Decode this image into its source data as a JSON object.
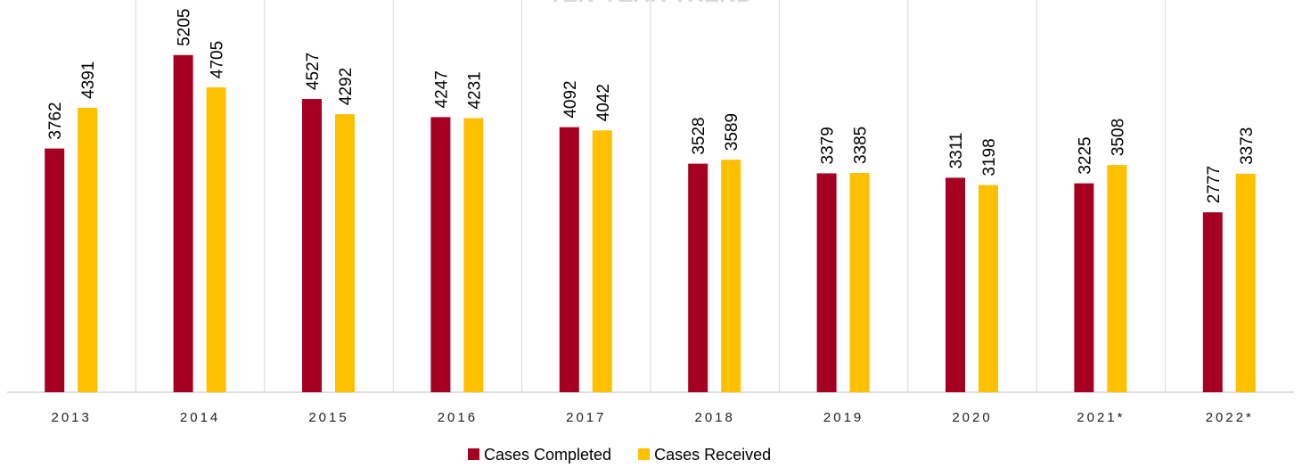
{
  "chart_data": {
    "type": "bar",
    "title": "TEN-YEAR TREND",
    "categories": [
      "2013",
      "2014",
      "2015",
      "2016",
      "2017",
      "2018",
      "2019",
      "2020",
      "2021*",
      "2022*"
    ],
    "series": [
      {
        "name": "Cases Completed",
        "color": "#a50021",
        "values": [
          3762,
          5205,
          4527,
          4247,
          4092,
          3528,
          3379,
          3311,
          3225,
          2777
        ]
      },
      {
        "name": "Cases Received",
        "color": "#ffc000",
        "values": [
          4391,
          4705,
          4292,
          4231,
          4042,
          3589,
          3385,
          3198,
          3508,
          3373
        ]
      }
    ],
    "ylim": [
      0,
      6000
    ]
  }
}
